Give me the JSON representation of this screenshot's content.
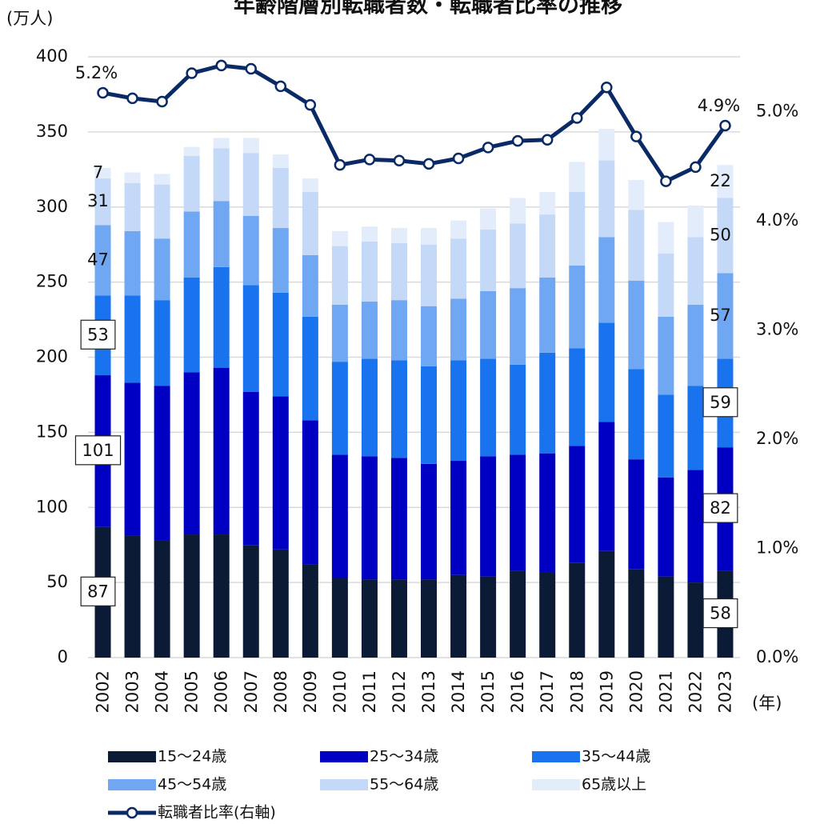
{
  "chart_data": {
    "type": "bar",
    "title": "年齢階層別転職者数・転職者比率の推移",
    "ylabel": "(万人)",
    "xlabel": "(年)",
    "categories": [
      "2002",
      "2003",
      "2004",
      "2005",
      "2006",
      "2007",
      "2008",
      "2009",
      "2010",
      "2011",
      "2012",
      "2013",
      "2014",
      "2015",
      "2016",
      "2017",
      "2018",
      "2019",
      "2020",
      "2021",
      "2022",
      "2023"
    ],
    "stacked": true,
    "ylim": [
      0,
      400
    ],
    "yticks": [
      0,
      50,
      100,
      150,
      200,
      250,
      300,
      350,
      400
    ],
    "y2lim": [
      0,
      5.5
    ],
    "y2ticks": [
      {
        "value": 0,
        "label": "0.0%"
      },
      {
        "value": 1,
        "label": "1.0%"
      },
      {
        "value": 2,
        "label": "2.0%"
      },
      {
        "value": 3,
        "label": "3.0%"
      },
      {
        "value": 4,
        "label": "4.0%"
      },
      {
        "value": 5,
        "label": "5.0%"
      }
    ],
    "grid": true,
    "legend": "bottom",
    "series": [
      {
        "name": "15～24歳",
        "color": "#0b1a35",
        "label_box": true,
        "values": [
          87,
          81,
          78,
          82,
          82,
          75,
          72,
          62,
          53,
          52,
          52,
          52,
          55,
          54,
          58,
          57,
          63,
          71,
          59,
          54,
          50,
          58
        ],
        "value_labels": [
          "87",
          null,
          null,
          null,
          null,
          null,
          null,
          null,
          null,
          null,
          null,
          null,
          null,
          null,
          null,
          null,
          null,
          null,
          null,
          null,
          null,
          "58"
        ]
      },
      {
        "name": "25～34歳",
        "color": "#0000c2",
        "label_box": true,
        "values": [
          101,
          102,
          103,
          108,
          111,
          102,
          102,
          96,
          82,
          82,
          81,
          77,
          76,
          80,
          77,
          79,
          78,
          86,
          73,
          66,
          75,
          82
        ],
        "value_labels": [
          "101",
          null,
          null,
          null,
          null,
          null,
          null,
          null,
          null,
          null,
          null,
          null,
          null,
          null,
          null,
          null,
          null,
          null,
          null,
          null,
          null,
          "82"
        ]
      },
      {
        "name": "35～44歳",
        "color": "#1a73ee",
        "label_box": true,
        "values": [
          53,
          58,
          57,
          63,
          67,
          71,
          69,
          69,
          62,
          65,
          65,
          65,
          67,
          65,
          60,
          67,
          65,
          66,
          60,
          55,
          56,
          59
        ],
        "value_labels": [
          "53",
          null,
          null,
          null,
          null,
          null,
          null,
          null,
          null,
          null,
          null,
          null,
          null,
          null,
          null,
          null,
          null,
          null,
          null,
          null,
          null,
          "59"
        ]
      },
      {
        "name": "45～54歳",
        "color": "#70a7f3",
        "values": [
          47,
          43,
          41,
          44,
          44,
          46,
          43,
          41,
          38,
          38,
          40,
          40,
          41,
          45,
          51,
          50,
          55,
          57,
          59,
          52,
          54,
          57
        ],
        "value_labels": [
          "47",
          null,
          null,
          null,
          null,
          null,
          null,
          null,
          null,
          null,
          null,
          null,
          null,
          null,
          null,
          null,
          null,
          null,
          null,
          null,
          null,
          "57"
        ]
      },
      {
        "name": "55～64歳",
        "color": "#c4d8f7",
        "values": [
          31,
          32,
          36,
          37,
          35,
          42,
          40,
          42,
          39,
          40,
          38,
          41,
          40,
          41,
          43,
          42,
          49,
          51,
          47,
          42,
          45,
          50
        ],
        "value_labels": [
          "31",
          null,
          null,
          null,
          null,
          null,
          null,
          null,
          null,
          null,
          null,
          null,
          null,
          null,
          null,
          null,
          null,
          null,
          null,
          null,
          null,
          "50"
        ]
      },
      {
        "name": "65歳以上",
        "color": "#e2ecfb",
        "values": [
          7,
          7,
          7,
          6,
          7,
          10,
          9,
          9,
          10,
          10,
          10,
          11,
          12,
          14,
          17,
          15,
          20,
          21,
          20,
          21,
          21,
          22
        ],
        "value_labels": [
          "7",
          null,
          null,
          null,
          null,
          null,
          null,
          null,
          null,
          null,
          null,
          null,
          null,
          null,
          null,
          null,
          null,
          null,
          null,
          null,
          null,
          "22"
        ]
      },
      {
        "name": "転職者比率(右軸)",
        "color": "#0a2a66",
        "type": "line",
        "axis": "y2",
        "values": [
          5.17,
          5.12,
          5.09,
          5.35,
          5.42,
          5.39,
          5.23,
          5.06,
          4.51,
          4.56,
          4.55,
          4.52,
          4.57,
          4.67,
          4.73,
          4.74,
          4.94,
          5.22,
          4.77,
          4.36,
          4.49,
          4.87
        ],
        "value_labels": [
          "5.2%",
          null,
          null,
          null,
          null,
          null,
          null,
          null,
          null,
          null,
          null,
          null,
          null,
          null,
          null,
          null,
          null,
          null,
          null,
          null,
          null,
          "4.9%"
        ]
      }
    ]
  }
}
